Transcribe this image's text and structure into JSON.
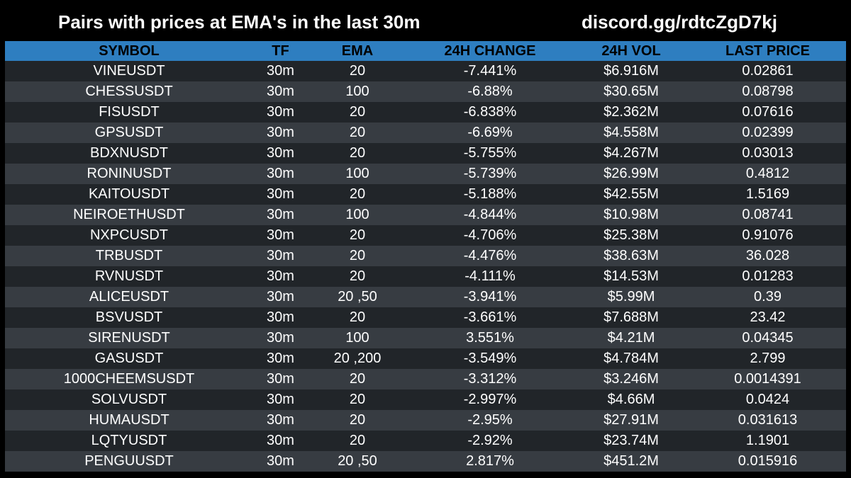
{
  "header": {
    "title": "Pairs with prices at EMA's in the last 30m",
    "discord": "discord.gg/rdtcZgD7kj"
  },
  "columns": [
    "SYMBOL",
    "TF",
    "EMA",
    "24H CHANGE",
    "24H VOL",
    "LAST PRICE"
  ],
  "rows": [
    [
      "VINEUSDT",
      "30m",
      "20",
      "-7.441%",
      "$6.916M",
      "0.02861"
    ],
    [
      "CHESSUSDT",
      "30m",
      "100",
      "-6.88%",
      "$30.65M",
      "0.08798"
    ],
    [
      "FISUSDT",
      "30m",
      "20",
      "-6.838%",
      "$2.362M",
      "0.07616"
    ],
    [
      "GPSUSDT",
      "30m",
      "20",
      "-6.69%",
      "$4.558M",
      "0.02399"
    ],
    [
      "BDXNUSDT",
      "30m",
      "20",
      "-5.755%",
      "$4.267M",
      "0.03013"
    ],
    [
      "RONINUSDT",
      "30m",
      "100",
      "-5.739%",
      "$26.99M",
      "0.4812"
    ],
    [
      "KAITOUSDT",
      "30m",
      "20",
      "-5.188%",
      "$42.55M",
      "1.5169"
    ],
    [
      "NEIROETHUSDT",
      "30m",
      "100",
      "-4.844%",
      "$10.98M",
      "0.08741"
    ],
    [
      "NXPCUSDT",
      "30m",
      "20",
      "-4.706%",
      "$25.38M",
      "0.91076"
    ],
    [
      "TRBUSDT",
      "30m",
      "20",
      "-4.476%",
      "$38.63M",
      "36.028"
    ],
    [
      "RVNUSDT",
      "30m",
      "20",
      "-4.111%",
      "$14.53M",
      "0.01283"
    ],
    [
      "ALICEUSDT",
      "30m",
      "20 ,50",
      "-3.941%",
      "$5.99M",
      "0.39"
    ],
    [
      "BSVUSDT",
      "30m",
      "20",
      "-3.661%",
      "$7.688M",
      "23.42"
    ],
    [
      "SIRENUSDT",
      "30m",
      "100",
      "3.551%",
      "$4.21M",
      "0.04345"
    ],
    [
      "GASUSDT",
      "30m",
      "20 ,200",
      "-3.549%",
      "$4.784M",
      "2.799"
    ],
    [
      "1000CHEEMSUSDT",
      "30m",
      "20",
      "-3.312%",
      "$3.246M",
      "0.0014391"
    ],
    [
      "SOLVUSDT",
      "30m",
      "20",
      "-2.997%",
      "$4.66M",
      "0.0424"
    ],
    [
      "HUMAUSDT",
      "30m",
      "20",
      "-2.95%",
      "$27.91M",
      "0.031613"
    ],
    [
      "LQTYUSDT",
      "30m",
      "20",
      "-2.92%",
      "$23.74M",
      "1.1901"
    ],
    [
      "PENGUUSDT",
      "30m",
      "20 ,50",
      "2.817%",
      "$451.2M",
      "0.015916"
    ]
  ],
  "colors": {
    "background": "#000000",
    "header_row": "#2e7ec0",
    "row_odd": "#212529",
    "row_even": "#373c42"
  }
}
